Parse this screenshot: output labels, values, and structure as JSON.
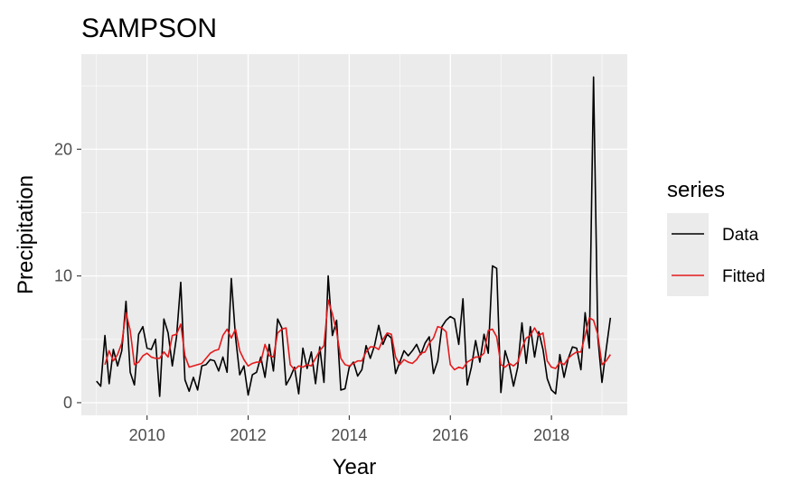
{
  "chart_data": {
    "type": "line",
    "title": "SAMPSON",
    "xlabel": "Year",
    "ylabel": "Precipitation",
    "xlim": [
      2008.7,
      2019.5
    ],
    "ylim": [
      -1,
      27.5
    ],
    "x_ticks": [
      2010,
      2012,
      2014,
      2016,
      2018
    ],
    "x_tick_labels": [
      "2010",
      "2012",
      "2014",
      "2016",
      "2018"
    ],
    "y_ticks": [
      0,
      10,
      20
    ],
    "y_tick_labels": [
      "0",
      "10",
      "20"
    ],
    "grid": true,
    "legend": {
      "title": "series",
      "position": "right"
    },
    "x_start": 2009.0,
    "x_step": 0.08333,
    "series": [
      {
        "name": "Data",
        "color": "#000000",
        "values": [
          1.7,
          1.3,
          5.3,
          1.5,
          4.2,
          2.9,
          4.1,
          8.0,
          2.4,
          1.4,
          5.4,
          6.0,
          4.3,
          4.2,
          5.0,
          0.5,
          6.6,
          5.5,
          2.9,
          5.2,
          9.5,
          1.8,
          0.9,
          2.0,
          1.0,
          2.9,
          3.0,
          3.4,
          3.3,
          2.5,
          3.6,
          2.4,
          9.8,
          5.2,
          2.2,
          2.9,
          0.6,
          2.2,
          2.4,
          3.6,
          2.0,
          4.6,
          2.5,
          6.6,
          5.9,
          1.4,
          2.0,
          2.8,
          0.7,
          4.3,
          2.7,
          4.0,
          1.5,
          4.4,
          1.6,
          10.0,
          5.3,
          6.5,
          1.0,
          1.1,
          2.8,
          3.2,
          2.1,
          2.6,
          4.5,
          3.5,
          4.5,
          6.1,
          4.6,
          5.4,
          5.1,
          2.3,
          3.2,
          4.1,
          3.7,
          4.1,
          4.6,
          3.8,
          4.7,
          5.2,
          2.3,
          3.3,
          6.0,
          6.5,
          6.8,
          6.6,
          4.6,
          8.2,
          1.4,
          2.8,
          4.9,
          3.2,
          5.4,
          3.9,
          10.8,
          10.6,
          0.8,
          4.1,
          3.0,
          1.3,
          2.8,
          6.3,
          3.1,
          6.0,
          3.6,
          5.6,
          4.2,
          1.9,
          1.0,
          0.7,
          3.8,
          2.0,
          3.5,
          4.4,
          4.3,
          2.6,
          7.1,
          4.3,
          25.7,
          5.2,
          1.6,
          4.2,
          6.7
        ]
      },
      {
        "name": "Fitted",
        "color": "#e41a1c",
        "values": [
          null,
          null,
          3.0,
          4.1,
          3.3,
          3.8,
          4.7,
          7.1,
          5.7,
          3.0,
          3.2,
          3.7,
          3.9,
          3.6,
          3.5,
          3.5,
          4.0,
          3.6,
          5.3,
          5.4,
          6.2,
          3.7,
          2.8,
          2.9,
          3.0,
          3.1,
          3.5,
          3.9,
          4.1,
          4.2,
          5.3,
          5.8,
          5.1,
          5.8,
          4.1,
          3.4,
          2.9,
          3.1,
          3.2,
          3.2,
          4.6,
          3.7,
          3.6,
          5.5,
          5.8,
          5.9,
          3.0,
          2.6,
          2.9,
          2.8,
          3.0,
          2.9,
          3.5,
          4.1,
          4.5,
          8.1,
          7.0,
          5.6,
          3.5,
          3.0,
          2.9,
          3.1,
          3.3,
          3.3,
          4.0,
          4.4,
          4.4,
          4.2,
          5.0,
          5.5,
          5.4,
          3.6,
          3.0,
          3.4,
          3.2,
          3.1,
          3.4,
          3.9,
          4.0,
          4.7,
          5.1,
          6.0,
          5.9,
          5.6,
          3.0,
          2.6,
          2.8,
          2.7,
          3.2,
          3.4,
          3.6,
          3.6,
          3.9,
          5.7,
          5.8,
          5.2,
          3.0,
          2.8,
          3.1,
          2.9,
          3.2,
          4.3,
          5.1,
          5.3,
          5.9,
          5.3,
          5.5,
          3.3,
          2.8,
          2.7,
          3.2,
          3.0,
          3.5,
          3.8,
          4.0,
          4.0,
          5.3,
          6.7,
          6.5,
          5.4,
          3.0,
          3.3,
          3.8
        ]
      }
    ]
  }
}
